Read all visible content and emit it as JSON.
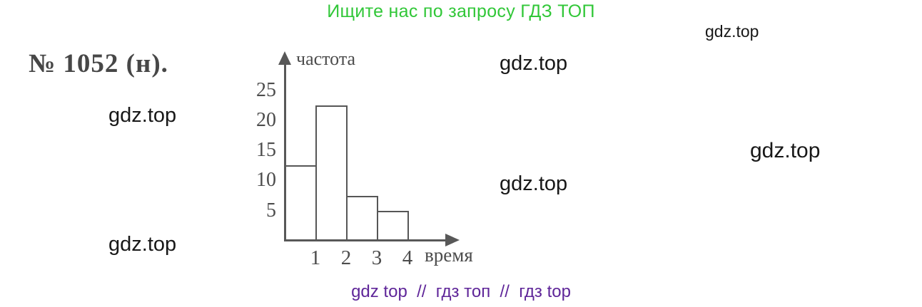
{
  "header": {
    "promo_text": "Ищите нас по запросу ГДЗ ТОП",
    "color": "#31c738"
  },
  "problem": {
    "label": "№ 1052 (н)."
  },
  "watermarks": [
    "gdz.top",
    "gdz.top",
    "gdz.top",
    "gdz.top",
    "gdz.top",
    "gdz.top"
  ],
  "chart_data": {
    "type": "bar",
    "title": "",
    "ylabel": "частота",
    "xlabel": "время",
    "categories": [
      "1",
      "2",
      "3",
      "4"
    ],
    "values": [
      12.5,
      22.5,
      7.5,
      5
    ],
    "yticks": [
      5,
      10,
      15,
      20,
      25
    ],
    "ylim": [
      0,
      27
    ],
    "grid": false,
    "legend": "none",
    "bar_fill": "#ffffff",
    "axis_color": "#585858"
  },
  "footer": {
    "text": "gdz top  //  гдз топ  //  гдз top",
    "color": "#5f2699"
  }
}
